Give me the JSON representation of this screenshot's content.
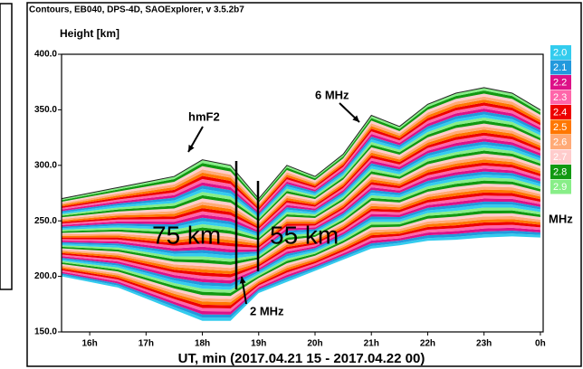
{
  "chart_data": {
    "type": "contour",
    "title": "Contours, EB040, DPS-4D, SAOExplorer, v 3.5.2b7",
    "y_label": "Height [km]",
    "x_label": "UT, min (2017.04.21 15 - 2017.04.22 00)",
    "x": [
      15.5,
      16,
      16.5,
      17,
      17.5,
      18,
      18.5,
      19,
      19.5,
      20,
      20.5,
      21,
      21.5,
      22,
      22.5,
      23,
      23.5,
      24
    ],
    "series": [
      {
        "values": [
          200,
          195,
          190,
          180,
          170,
          160,
          160,
          185,
          195,
          205,
          215,
          225,
          228,
          232,
          233,
          235,
          236,
          235
        ]
      },
      {
        "values": [
          214,
          211,
          208,
          201,
          194,
          189,
          188,
          202,
          216,
          222,
          234,
          249,
          249,
          257,
          259,
          262,
          262,
          258
        ]
      },
      {
        "values": [
          228,
          227,
          226,
          222,
          218,
          218,
          216,
          219,
          237,
          239,
          253,
          273,
          271,
          281,
          286,
          289,
          288,
          281
        ]
      },
      {
        "values": [
          242,
          243,
          244,
          243,
          242,
          247,
          244,
          236,
          258,
          256,
          272,
          297,
          292,
          306,
          312,
          316,
          313,
          304
        ]
      },
      {
        "values": [
          256,
          259,
          262,
          264,
          266,
          276,
          272,
          253,
          279,
          273,
          291,
          321,
          314,
          330,
          339,
          343,
          339,
          327
        ]
      },
      {
        "values": [
          270,
          275,
          280,
          285,
          290,
          305,
          300,
          270,
          300,
          290,
          310,
          345,
          335,
          355,
          365,
          370,
          365,
          350
        ]
      }
    ],
    "xlim": [
      15.5,
      24.05
    ],
    "ylim": [
      150,
      400
    ],
    "xticks": [
      {
        "value": 16,
        "label": "16h"
      },
      {
        "value": 17,
        "label": "17h"
      },
      {
        "value": 18,
        "label": "18h"
      },
      {
        "value": 19,
        "label": "19h"
      },
      {
        "value": 20,
        "label": "20h"
      },
      {
        "value": 21,
        "label": "21h"
      },
      {
        "value": 22,
        "label": "22h"
      },
      {
        "value": 23,
        "label": "23h"
      },
      {
        "value": 24,
        "label": "0h"
      }
    ],
    "yticks": [
      {
        "value": 150,
        "label": "150.0"
      },
      {
        "value": 200,
        "label": "200.0"
      },
      {
        "value": 250,
        "label": "250.0"
      },
      {
        "value": 300,
        "label": "300.0"
      },
      {
        "value": 350,
        "label": "350.0"
      },
      {
        "value": 400,
        "label": "400.0"
      }
    ],
    "color_scale": [
      {
        "label": "2.0",
        "color": "#33ccee"
      },
      {
        "label": "2.1",
        "color": "#2299dd"
      },
      {
        "label": "2.2",
        "color": "#dd1188"
      },
      {
        "label": "2.3",
        "color": "#ff66aa"
      },
      {
        "label": "2.4",
        "color": "#ee0000"
      },
      {
        "label": "2.5",
        "color": "#ff7700"
      },
      {
        "label": "2.6",
        "color": "#ffaa77"
      },
      {
        "label": "2.7",
        "color": "#ffcccc"
      },
      {
        "label": "2.8",
        "color": "#119911"
      },
      {
        "label": "2.9",
        "color": "#88ee88"
      }
    ],
    "color_unit": "MHz",
    "outline_color": "#222222",
    "annotations": [
      "hmF2",
      "6 MHz",
      "2 MHz",
      "75 km",
      "55 km"
    ]
  }
}
